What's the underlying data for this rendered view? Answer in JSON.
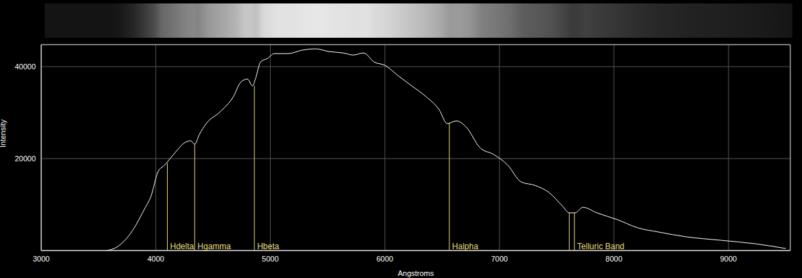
{
  "chart_data": {
    "type": "line",
    "x_label": "Angstroms",
    "y_label": "Intensity",
    "xlim": [
      3000,
      9540
    ],
    "ylim": [
      0,
      44800
    ],
    "xticks": [
      3000,
      4000,
      5000,
      6000,
      7000,
      8000,
      9000
    ],
    "yticks": [
      20000,
      40000
    ],
    "grid": true,
    "color": "#ffffff",
    "x": [
      3570,
      3660,
      3780,
      3900,
      3960,
      4020,
      4080,
      4100,
      4170,
      4260,
      4305,
      4340,
      4380,
      4440,
      4560,
      4680,
      4740,
      4800,
      4845,
      4870,
      4915,
      4975,
      5035,
      5155,
      5275,
      5395,
      5515,
      5635,
      5725,
      5815,
      5905,
      6000,
      6115,
      6235,
      6355,
      6475,
      6545,
      6625,
      6710,
      6830,
      6950,
      7070,
      7190,
      7310,
      7430,
      7550,
      7610,
      7660,
      7730,
      7850,
      8030,
      8210,
      8390,
      8630,
      8930,
      9230,
      9500
    ],
    "values": [
      0,
      750,
      3730,
      8955,
      11940,
      17160,
      18660,
      19250,
      21340,
      23580,
      23880,
      23130,
      25220,
      27610,
      30150,
      33580,
      36570,
      37310,
      35820,
      37310,
      41040,
      41790,
      42840,
      42840,
      43580,
      43880,
      43280,
      42990,
      42540,
      42990,
      41040,
      40300,
      38060,
      35820,
      33580,
      30600,
      27610,
      28210,
      26870,
      22390,
      20900,
      18660,
      14930,
      14180,
      12690,
      9700,
      8210,
      8210,
      9400,
      8210,
      6720,
      4930,
      4030,
      2990,
      2240,
      1490,
      450
    ],
    "annotations": [
      {
        "label": "Hdelta",
        "x": [
          4101
        ],
        "y": 19000,
        "color": "#e8dc78"
      },
      {
        "label": "Hgamma",
        "x": [
          4340
        ],
        "y": 23130,
        "color": "#e8dc78"
      },
      {
        "label": "Hbeta",
        "x": [
          4861
        ],
        "y": 35820,
        "color": "#e8dc78"
      },
      {
        "label": "Halpha",
        "x": [
          6563
        ],
        "y": 27610,
        "color": "#e8dc78"
      },
      {
        "label": "Telluric Band",
        "x": [
          7610,
          7655
        ],
        "y": 8210,
        "color": "#e8dc78"
      }
    ]
  }
}
